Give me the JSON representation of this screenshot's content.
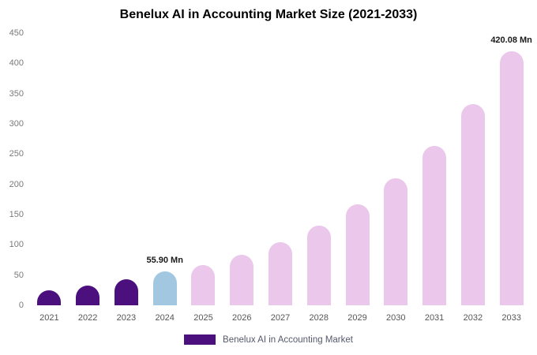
{
  "chart_data": {
    "type": "bar",
    "title": "Benelux AI in Accounting Market Size (2021-2033)",
    "xlabel": "",
    "ylabel": "",
    "categories": [
      "2021",
      "2022",
      "2023",
      "2024",
      "2025",
      "2026",
      "2027",
      "2028",
      "2029",
      "2030",
      "2031",
      "2032",
      "2033"
    ],
    "values": [
      25,
      32,
      43,
      55.9,
      66,
      83,
      105,
      132,
      167,
      210,
      263,
      332,
      420.08
    ],
    "bar_colors": [
      "#4b0f7e",
      "#4b0f7e",
      "#4b0f7e",
      "#a2c8e1",
      "#eac7eb",
      "#eac7eb",
      "#eac7eb",
      "#eac7eb",
      "#eac7eb",
      "#eac7eb",
      "#eac7eb",
      "#eac7eb",
      "#eac7eb"
    ],
    "annotations": [
      {
        "category": "2024",
        "text": "55.90 Mn"
      },
      {
        "category": "2033",
        "text": "420.08 Mn"
      }
    ],
    "ylim": [
      0,
      450
    ],
    "ytick_step": 50,
    "grid": false,
    "legend": {
      "position": "bottom",
      "label": "Benelux AI in Accounting Market",
      "swatch_color": "#4b0f7e"
    }
  }
}
